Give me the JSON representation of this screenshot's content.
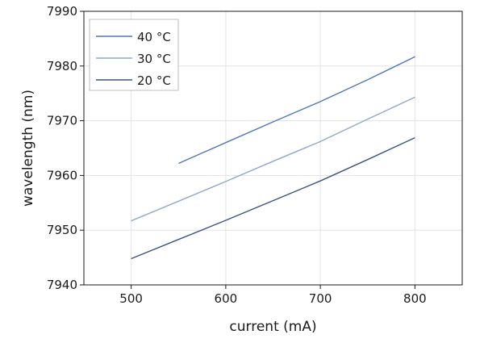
{
  "chart_data": {
    "type": "line",
    "xlabel": "current (mA)",
    "ylabel": "wavelength (nm)",
    "xlim": [
      450,
      850
    ],
    "ylim": [
      7940,
      7990
    ],
    "xticks": [
      500,
      600,
      700,
      800
    ],
    "yticks": [
      7940,
      7950,
      7960,
      7970,
      7980,
      7990
    ],
    "grid": true,
    "legend_position": "top-left",
    "series": [
      {
        "name": "40 °C",
        "color": "#5077b8",
        "x": [
          550,
          600,
          650,
          700,
          750,
          800
        ],
        "y": [
          7962.2,
          7966.0,
          7969.8,
          7973.5,
          7977.5,
          7981.7
        ]
      },
      {
        "name": "30 °C",
        "color": "#8fa8cd",
        "x": [
          500,
          550,
          600,
          650,
          700,
          750,
          800
        ],
        "y": [
          7951.7,
          7955.3,
          7958.9,
          7962.6,
          7966.2,
          7970.3,
          7974.3
        ]
      },
      {
        "name": "20 °C",
        "color": "#3c5580",
        "x": [
          500,
          550,
          600,
          650,
          700,
          750,
          800
        ],
        "y": [
          7944.8,
          7948.3,
          7951.8,
          7955.4,
          7959.0,
          7962.9,
          7966.9
        ]
      }
    ]
  }
}
